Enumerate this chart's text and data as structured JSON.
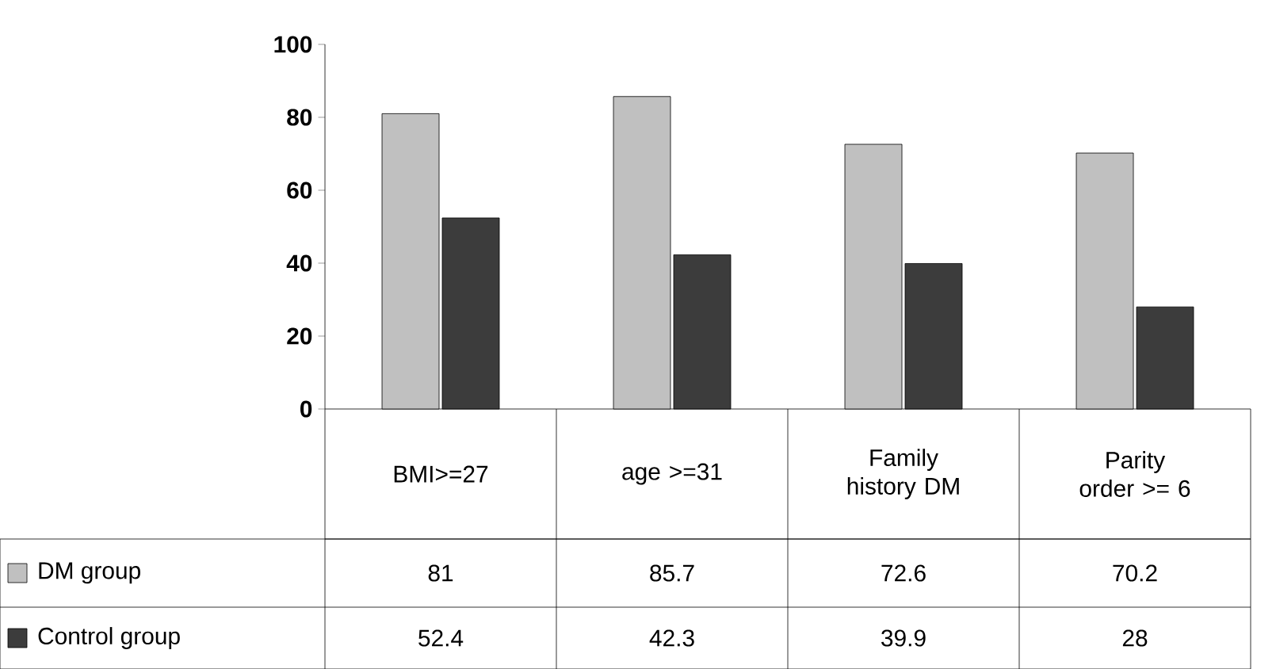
{
  "chart_data": {
    "type": "bar",
    "categories": [
      "BMI>=27",
      "age >=31",
      "Family history DM",
      "Parity order >= 6"
    ],
    "series": [
      {
        "name": "DM group",
        "color": "#c0c0c0",
        "values": [
          81,
          85.7,
          72.6,
          70.2
        ]
      },
      {
        "name": "Control group",
        "color": "#3c3c3c",
        "values": [
          52.4,
          42.3,
          39.9,
          28
        ]
      }
    ],
    "ylim": [
      0,
      100
    ],
    "yticks": [
      0,
      20,
      40,
      60,
      80,
      100
    ],
    "data_labels": true,
    "legend": "bottom left",
    "grid": false
  }
}
